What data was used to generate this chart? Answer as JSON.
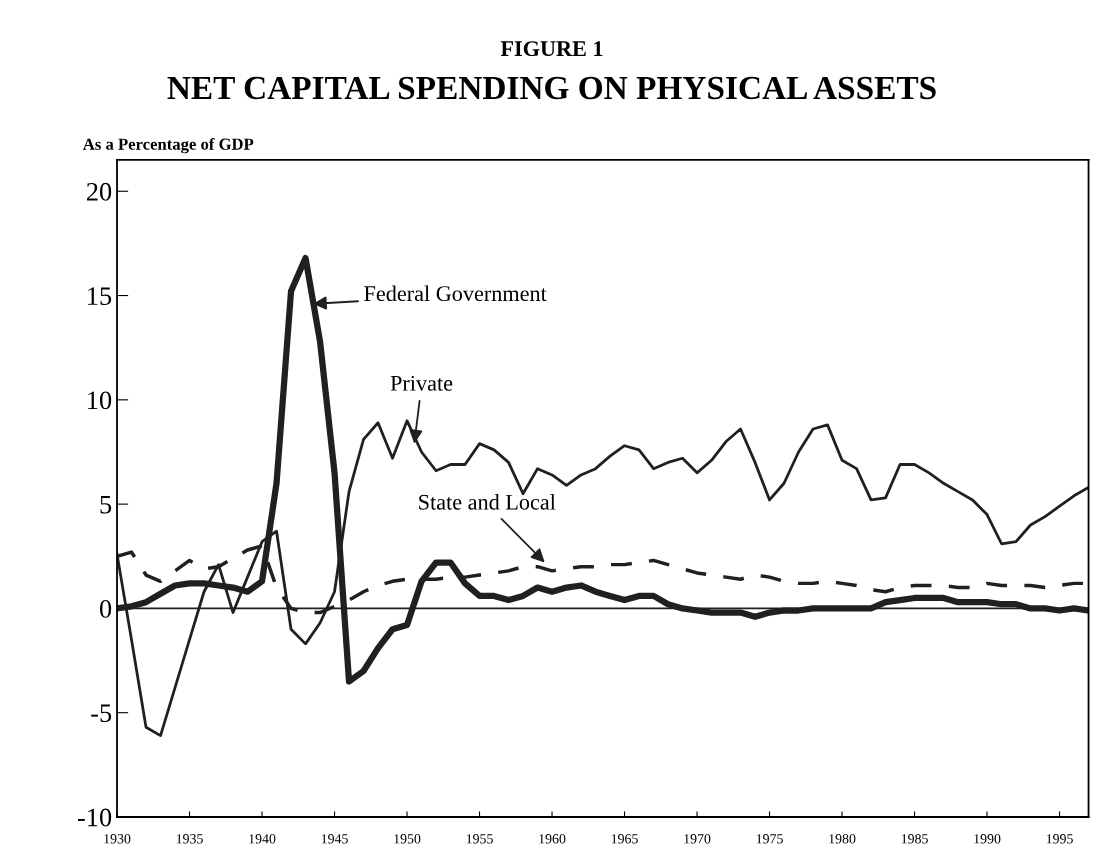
{
  "chart_data": {
    "type": "line",
    "title": "FIGURE 1",
    "subtitle": "NET CAPITAL SPENDING ON PHYSICAL ASSETS",
    "ylabel": "As a Percentage of GDP",
    "x": [
      1930,
      1931,
      1932,
      1933,
      1934,
      1935,
      1936,
      1937,
      1938,
      1939,
      1940,
      1941,
      1942,
      1943,
      1944,
      1945,
      1946,
      1947,
      1948,
      1949,
      1950,
      1951,
      1952,
      1953,
      1954,
      1955,
      1956,
      1957,
      1958,
      1959,
      1960,
      1961,
      1962,
      1963,
      1964,
      1965,
      1966,
      1967,
      1968,
      1969,
      1970,
      1971,
      1972,
      1973,
      1974,
      1975,
      1976,
      1977,
      1978,
      1979,
      1980,
      1981,
      1982,
      1983,
      1984,
      1985,
      1986,
      1987,
      1988,
      1989,
      1990,
      1991,
      1992,
      1993,
      1994,
      1995,
      1996,
      1997
    ],
    "series": [
      {
        "color": "#231f20",
        "line_style": "solid",
        "values": [
          2.6,
          -1.5,
          -5.7,
          -6.1,
          -3.8,
          -1.5,
          0.8,
          2.1,
          -0.2,
          1.5,
          3.2,
          3.7,
          -1.0,
          -1.7,
          -0.7,
          0.8,
          5.6,
          8.1,
          8.9,
          7.2,
          9.0,
          7.5,
          6.6,
          6.9,
          6.9,
          7.9,
          7.6,
          7.0,
          5.5,
          6.7,
          6.4,
          5.9,
          6.4,
          6.7,
          7.3,
          7.8,
          7.6,
          6.7,
          7.0,
          7.2,
          6.5,
          7.1,
          8.0,
          8.6,
          7.0,
          5.2,
          6.0,
          7.5,
          8.6,
          8.8,
          7.1,
          6.7,
          5.2,
          5.3,
          6.9,
          6.9,
          6.5,
          6.0,
          5.6,
          5.2,
          4.5,
          3.1,
          3.2,
          4.0,
          4.4,
          4.9,
          5.4,
          5.8
        ]
      },
      {
        "color": "#231f20",
        "line_style": "solid",
        "values": [
          0.0,
          0.1,
          0.3,
          0.7,
          1.1,
          1.2,
          1.2,
          1.1,
          1.0,
          0.8,
          1.3,
          6.0,
          15.2,
          16.8,
          12.8,
          6.5,
          -3.5,
          -3.0,
          -1.9,
          -1.0,
          -0.8,
          1.3,
          2.2,
          2.2,
          1.2,
          0.6,
          0.6,
          0.4,
          0.6,
          1.0,
          0.8,
          1.0,
          1.1,
          0.8,
          0.6,
          0.4,
          0.6,
          0.6,
          0.2,
          0.0,
          -0.1,
          -0.2,
          -0.2,
          -0.2,
          -0.4,
          -0.2,
          -0.1,
          -0.1,
          0.0,
          0.0,
          0.0,
          0.0,
          0.0,
          0.3,
          0.4,
          0.5,
          0.5,
          0.5,
          0.3,
          0.3,
          0.3,
          0.2,
          0.2,
          0.0,
          0.0,
          -0.1,
          0.0,
          -0.1
        ]
      },
      {
        "color": "#231f20",
        "line_style": "dashed",
        "values": [
          2.5,
          2.7,
          1.6,
          1.3,
          1.8,
          2.3,
          1.9,
          2.0,
          2.4,
          2.8,
          3.0,
          1.0,
          0.0,
          -0.2,
          -0.2,
          0.1,
          0.4,
          0.8,
          1.1,
          1.3,
          1.4,
          1.4,
          1.4,
          1.5,
          1.5,
          1.6,
          1.7,
          1.8,
          2.0,
          2.0,
          1.8,
          1.9,
          2.0,
          2.0,
          2.1,
          2.1,
          2.2,
          2.3,
          2.1,
          1.9,
          1.7,
          1.6,
          1.5,
          1.4,
          1.6,
          1.5,
          1.3,
          1.2,
          1.2,
          1.3,
          1.2,
          1.1,
          0.9,
          0.8,
          1.0,
          1.1,
          1.1,
          1.1,
          1.0,
          1.0,
          1.2,
          1.1,
          1.1,
          1.1,
          1.0,
          1.1,
          1.2,
          1.2
        ]
      }
    ],
    "annotations": [
      {
        "text": "Federal Government",
        "x": 1943.5,
        "y": 14.6
      },
      {
        "text": "Private",
        "x": 1950.5,
        "y": 7.9
      },
      {
        "text": "State and Local",
        "x": 1959.5,
        "y": 2.2
      }
    ],
    "ref_lines": [
      {
        "axis": "y",
        "value": 0,
        "color": "#231f20"
      }
    ],
    "xlim": [
      1930,
      1997
    ],
    "xticks": [
      1930,
      1935,
      1940,
      1945,
      1950,
      1955,
      1960,
      1965,
      1970,
      1975,
      1980,
      1985,
      1990,
      1995
    ],
    "ylim": [
      -10,
      21.5
    ],
    "yticks": [
      -10,
      -5,
      0,
      5,
      10,
      15,
      20
    ],
    "grid": false,
    "legend": false
  }
}
